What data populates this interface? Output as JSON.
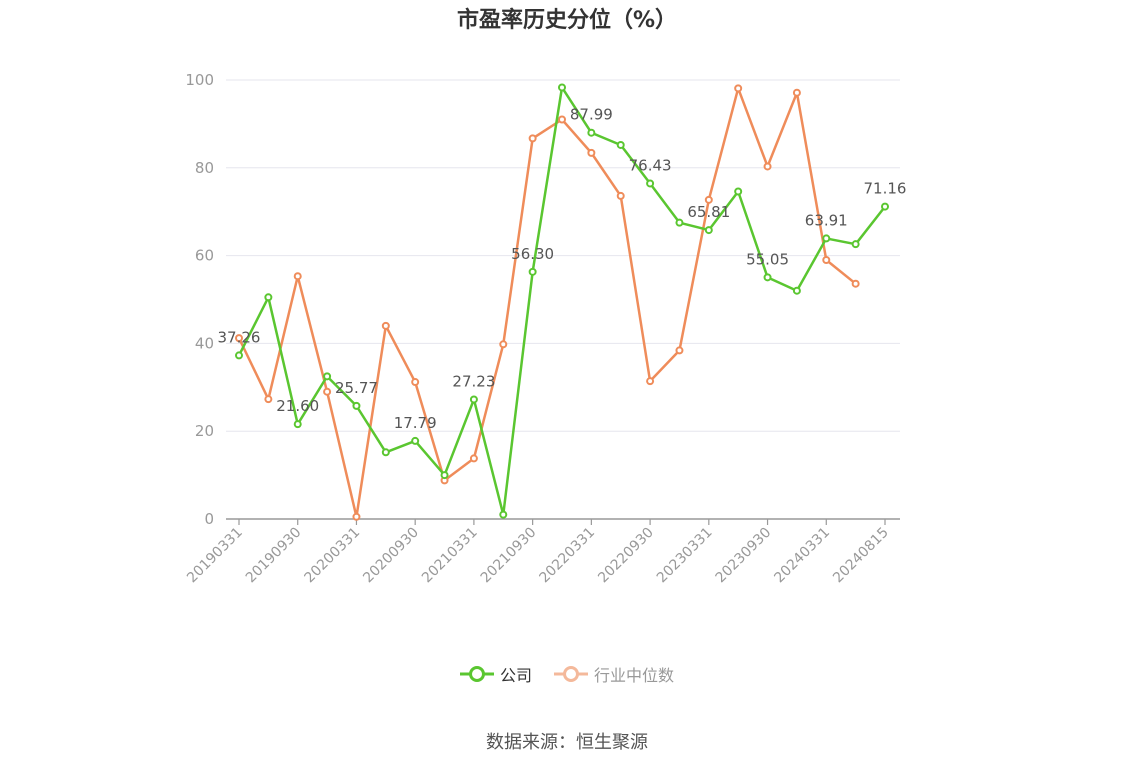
{
  "chart_data": {
    "type": "line",
    "title": "市盈率历史分位（%）",
    "ylim": [
      0,
      100
    ],
    "yticks": [
      0,
      20,
      40,
      60,
      80,
      100
    ],
    "grid": true,
    "legend_position": "bottom",
    "x": [
      "20190331",
      "20190630",
      "20190930",
      "20191231",
      "20200331",
      "20200630",
      "20200930",
      "20201231",
      "20210331",
      "20210630",
      "20210930",
      "20211231",
      "20220331",
      "20220630",
      "20220930",
      "20221231",
      "20230331",
      "20230630",
      "20230930",
      "20231231",
      "20240331",
      "20240630",
      "20240815"
    ],
    "x_tick_labels": [
      "20190331",
      "20190930",
      "20200331",
      "20200930",
      "20210331",
      "20210930",
      "20220331",
      "20220930",
      "20230331",
      "20230930",
      "20240331",
      "20240815"
    ],
    "series": [
      {
        "name": "公司",
        "color": "#5ac630",
        "values": [
          37.26,
          50.5,
          21.6,
          32.5,
          25.77,
          15.2,
          17.79,
          10.0,
          27.23,
          1.0,
          56.3,
          98.3,
          87.99,
          85.2,
          76.43,
          67.5,
          65.81,
          74.6,
          55.05,
          52.0,
          63.91,
          62.6,
          71.16
        ],
        "labels": [
          "37.26",
          "",
          "21.60",
          "",
          "25.77",
          "",
          "17.79",
          "",
          "27.23",
          "",
          "56.30",
          "",
          "87.99",
          "",
          "76.43",
          "",
          "65.81",
          "",
          "55.05",
          "",
          "63.91",
          "",
          "71.16"
        ]
      },
      {
        "name": "行业中位数",
        "color": "#ef8c5a",
        "values": [
          41.2,
          27.3,
          55.3,
          29.0,
          0.5,
          44.0,
          31.2,
          8.8,
          13.8,
          39.8,
          86.7,
          91.0,
          83.4,
          73.6,
          31.4,
          38.4,
          72.7,
          98.1,
          80.3,
          97.1,
          59.0,
          53.6,
          null
        ]
      }
    ]
  },
  "source_note": "数据来源：恒生聚源"
}
